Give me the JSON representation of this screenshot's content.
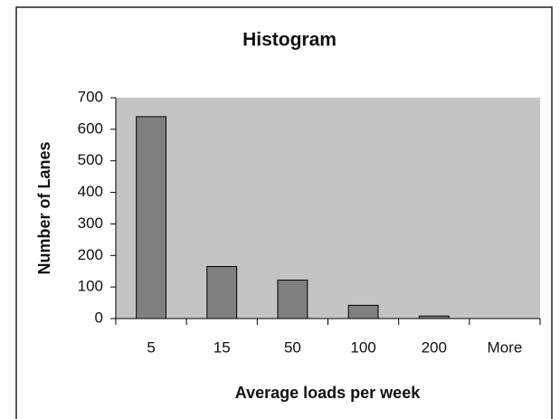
{
  "chart_data": {
    "type": "bar",
    "title": "Histogram",
    "x_label": "Average loads per week",
    "y_label": "Number of Lanes",
    "categories": [
      "5",
      "15",
      "50",
      "100",
      "200",
      "More"
    ],
    "values": [
      640,
      165,
      122,
      42,
      8,
      0
    ],
    "color": "#808080",
    "plot_background": "#c4c4c4",
    "ylim": [
      0,
      700
    ],
    "yticks": [
      0,
      100,
      200,
      300,
      400,
      500,
      600,
      700
    ],
    "grid": false
  }
}
